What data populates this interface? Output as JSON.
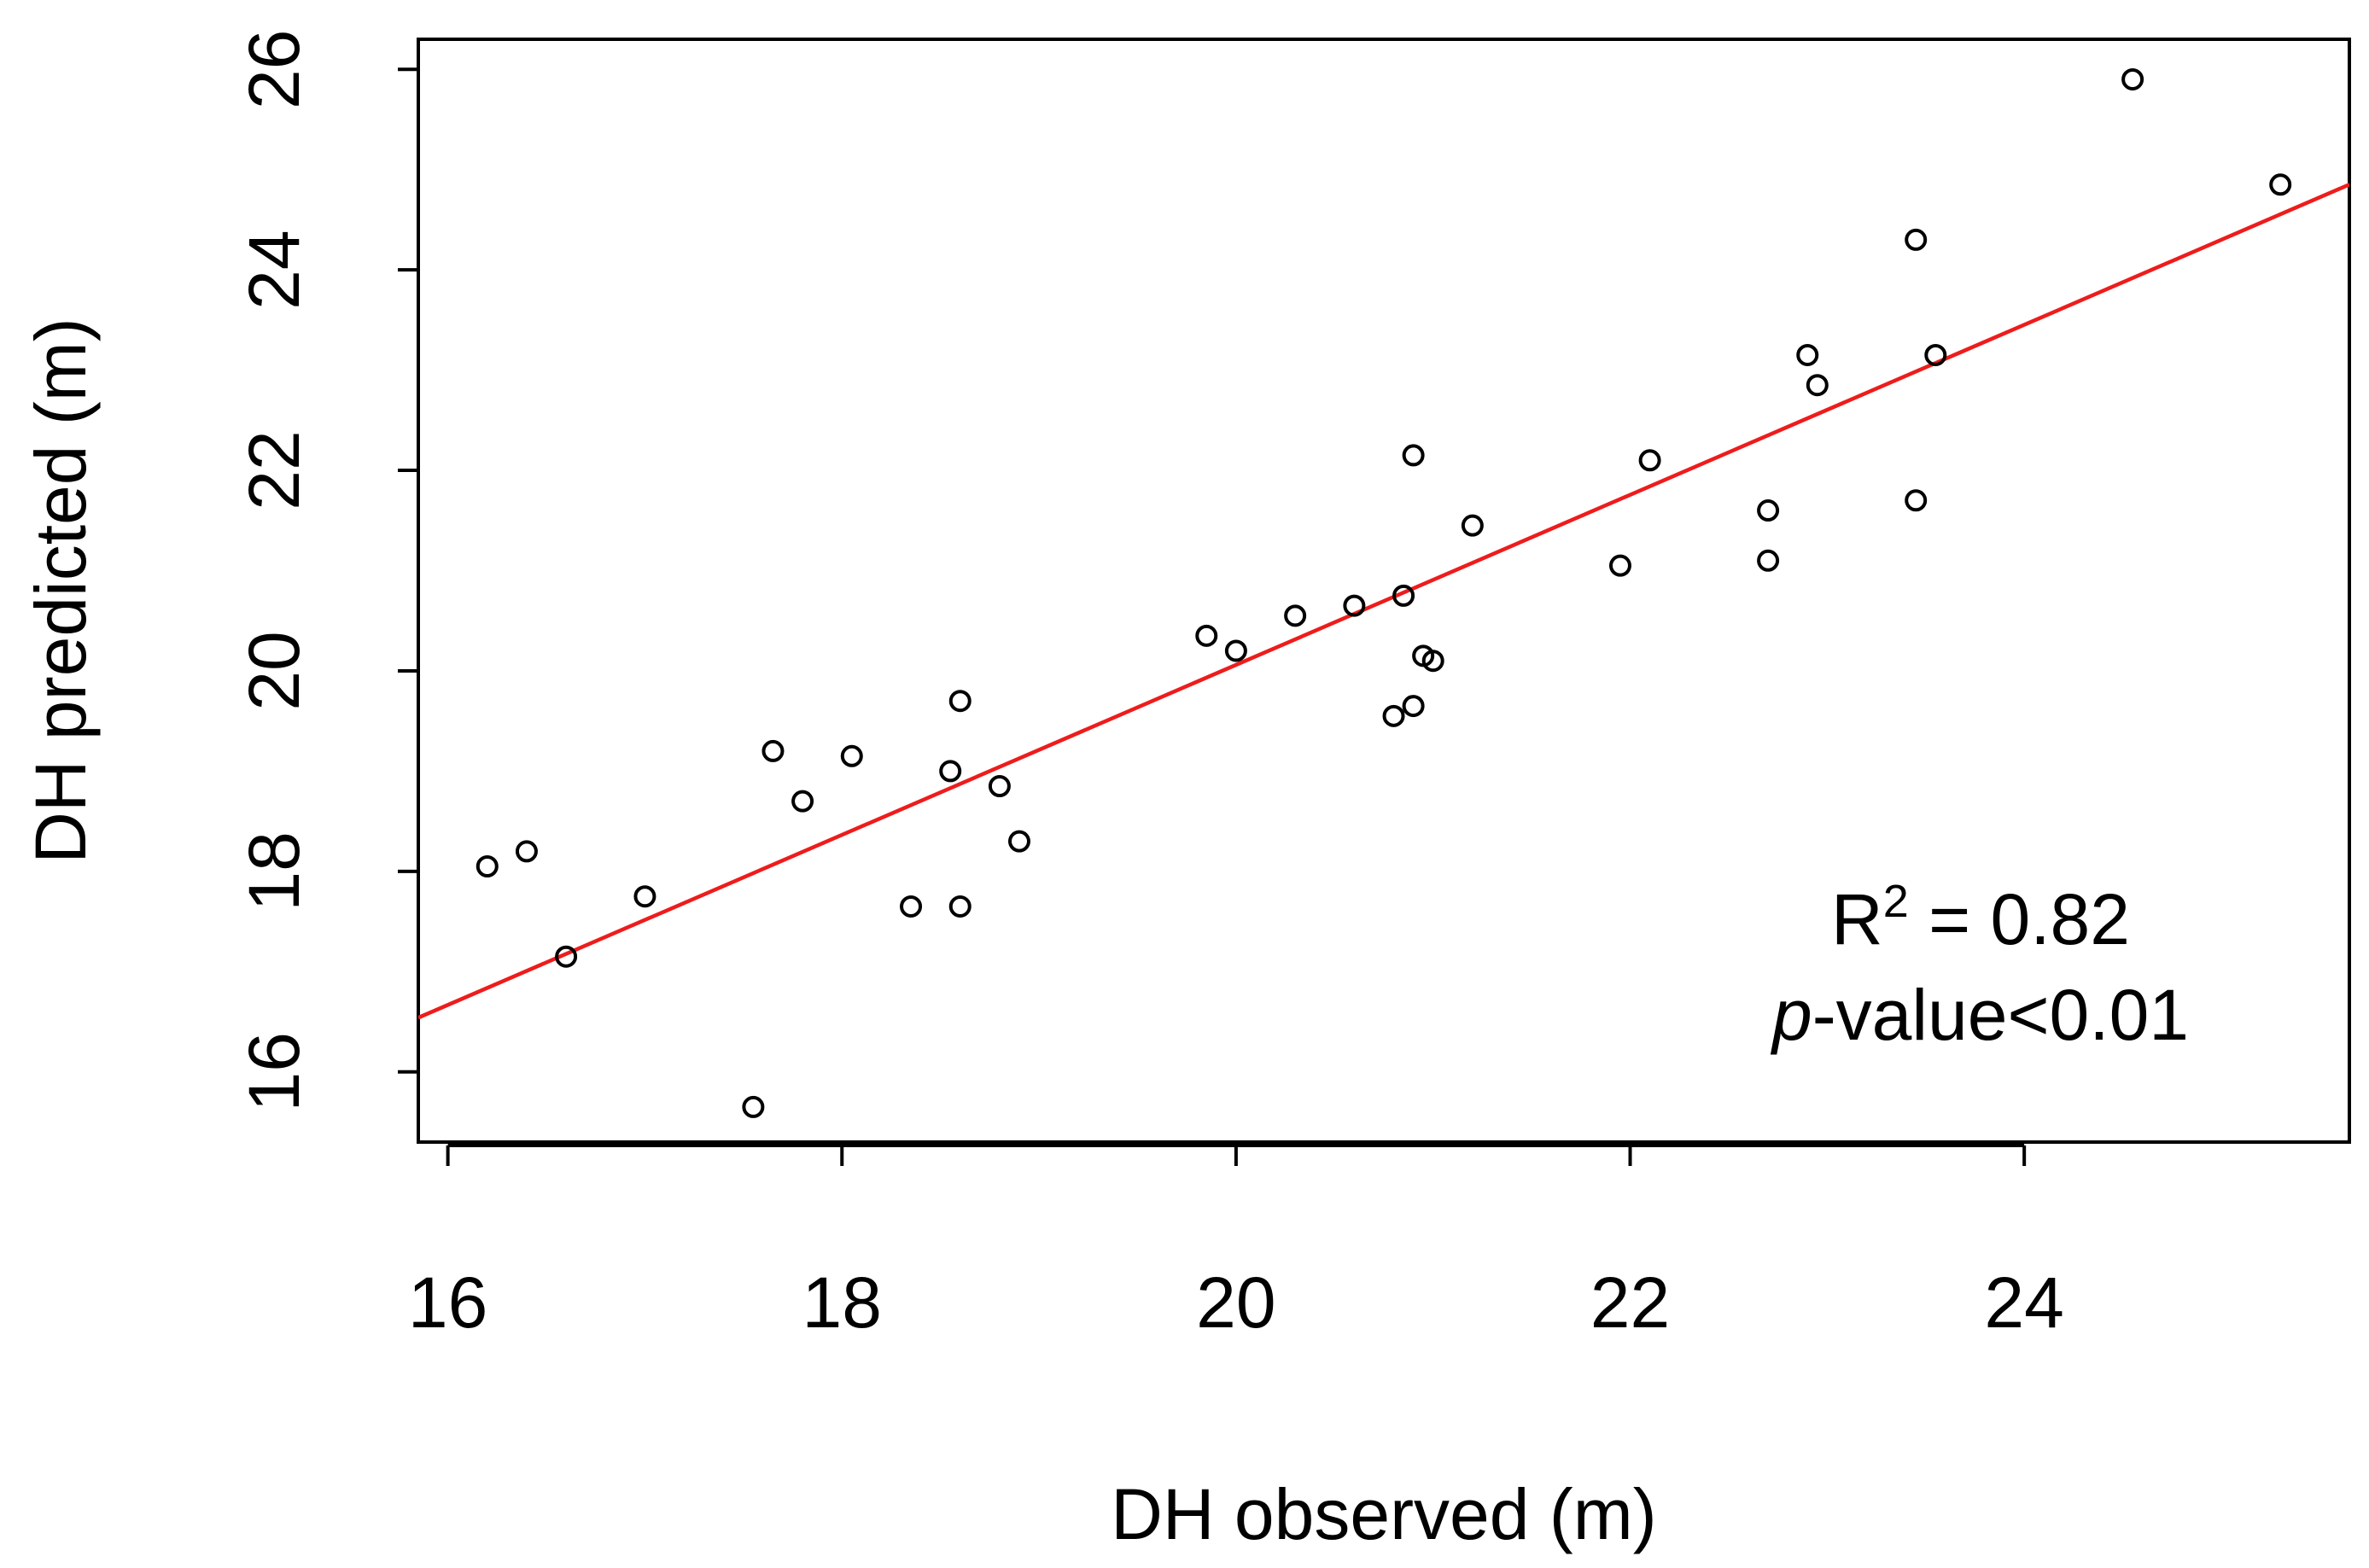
{
  "chart_data": {
    "type": "scatter",
    "title": "",
    "xlabel": "DH observed (m)",
    "ylabel": "DH predicted (m)",
    "xlim": [
      15.85,
      25.65
    ],
    "ylim": [
      15.3,
      26.3
    ],
    "xticks": [
      16,
      18,
      20,
      22,
      24
    ],
    "yticks": [
      16,
      18,
      20,
      22,
      24,
      26
    ],
    "xtick_labels": [
      "16",
      "18",
      "20",
      "22",
      "24"
    ],
    "ytick_labels": [
      "16",
      "18",
      "20",
      "22",
      "24",
      "26"
    ],
    "grid": false,
    "series": [
      {
        "name": "observations",
        "marker": "open-circle",
        "x": [
          16.2,
          16.4,
          16.6,
          17.0,
          17.55,
          17.65,
          17.8,
          18.05,
          18.35,
          18.55,
          18.6,
          18.6,
          18.8,
          18.9,
          19.85,
          20.0,
          20.3,
          20.6,
          20.8,
          20.85,
          20.9,
          20.9,
          20.95,
          21.0,
          21.2,
          21.95,
          22.1,
          22.7,
          22.7,
          22.9,
          22.95,
          23.45,
          23.45,
          23.55,
          24.55,
          25.3
        ],
        "y": [
          18.05,
          18.2,
          17.15,
          17.75,
          15.65,
          19.2,
          18.7,
          19.15,
          17.65,
          19.0,
          19.7,
          17.65,
          18.85,
          18.3,
          20.35,
          20.2,
          20.55,
          20.65,
          19.55,
          20.75,
          22.15,
          19.65,
          20.15,
          20.1,
          21.45,
          21.05,
          22.1,
          21.6,
          21.1,
          23.15,
          22.85,
          24.3,
          21.7,
          23.15,
          25.9,
          24.85
        ]
      }
    ],
    "fit_line": {
      "name": "regression",
      "color": "#ee1c1c",
      "slope": 0.848,
      "intercept": 3.1
    },
    "annotations": {
      "r2_prefix": "R",
      "r2_superscript": "2",
      "r2_suffix": " = 0.82",
      "p_italic": "p",
      "p_suffix": "-value<0.01",
      "position": "bottom-right"
    }
  }
}
